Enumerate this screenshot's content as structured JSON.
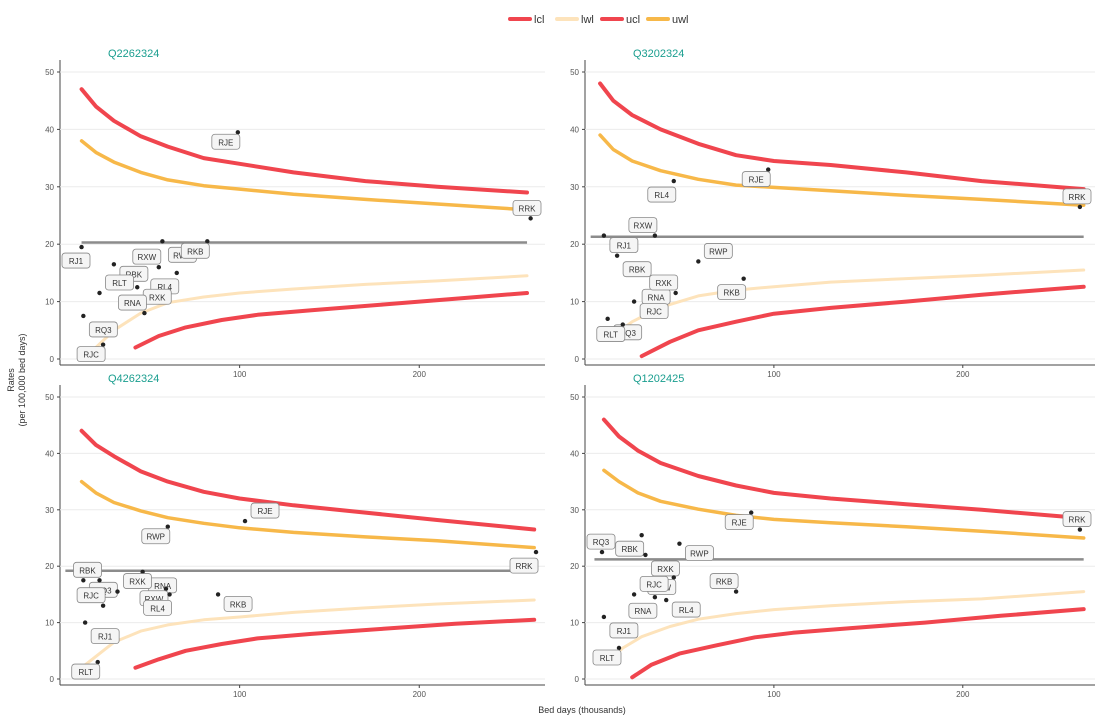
{
  "legend": [
    {
      "label": "lcl",
      "color": "#f0454e"
    },
    {
      "label": "lwl",
      "color": "#fde3bb"
    },
    {
      "label": "ucl",
      "color": "#f0454e"
    },
    {
      "label": "uwl",
      "color": "#f7b849"
    }
  ],
  "axes": {
    "xlabel": "Bed days (thousands)",
    "ylabel_line1": "Rates",
    "ylabel_line2": "(per 100,000 bed days)"
  },
  "colors": {
    "control_limit": "#f0454e",
    "lower_warning": "#fde3bb",
    "upper_warning": "#f7b849",
    "mean_line": "#8c8c8c",
    "panel_title": "#1a9e8f"
  },
  "chart_data": [
    {
      "type": "scatter",
      "title": "Q2262324",
      "xlim": [
        0,
        270
      ],
      "ylim": [
        0,
        50
      ],
      "xticks": [
        100,
        200
      ],
      "yticks": [
        0,
        10,
        20,
        30,
        40,
        50
      ],
      "mean": 20.3,
      "x_range": [
        12,
        260
      ],
      "ucl": [
        [
          12,
          47
        ],
        [
          20,
          44
        ],
        [
          30,
          41.5
        ],
        [
          45,
          38.8
        ],
        [
          60,
          37
        ],
        [
          80,
          35
        ],
        [
          100,
          34
        ],
        [
          130,
          32.5
        ],
        [
          170,
          31
        ],
        [
          210,
          30
        ],
        [
          260,
          29
        ]
      ],
      "uwl": [
        [
          12,
          38
        ],
        [
          20,
          36
        ],
        [
          30,
          34.3
        ],
        [
          45,
          32.5
        ],
        [
          60,
          31.2
        ],
        [
          80,
          30.2
        ],
        [
          100,
          29.6
        ],
        [
          130,
          28.7
        ],
        [
          170,
          27.8
        ],
        [
          210,
          27
        ],
        [
          260,
          26
        ]
      ],
      "lwl": [
        [
          20,
          2
        ],
        [
          30,
          5
        ],
        [
          45,
          8
        ],
        [
          60,
          9.8
        ],
        [
          80,
          10.8
        ],
        [
          100,
          11.5
        ],
        [
          130,
          12.2
        ],
        [
          170,
          13
        ],
        [
          210,
          13.6
        ],
        [
          260,
          14.5
        ]
      ],
      "lcl": [
        [
          42,
          2
        ],
        [
          55,
          4
        ],
        [
          70,
          5.5
        ],
        [
          90,
          6.8
        ],
        [
          110,
          7.7
        ],
        [
          140,
          8.5
        ],
        [
          180,
          9.5
        ],
        [
          220,
          10.5
        ],
        [
          260,
          11.5
        ]
      ],
      "points": [
        {
          "label": "RJE",
          "x": 99,
          "y": 39.5
        },
        {
          "label": "RRK",
          "x": 262,
          "y": 24.5
        },
        {
          "label": "RJ1",
          "x": 12,
          "y": 19.5
        },
        {
          "label": "RBK",
          "x": 30,
          "y": 16.5
        },
        {
          "label": "RXW",
          "x": 55,
          "y": 16
        },
        {
          "label": "RWP",
          "x": 57,
          "y": 20.5
        },
        {
          "label": "RKB",
          "x": 82,
          "y": 20.5
        },
        {
          "label": "RLT",
          "x": 22,
          "y": 11.5
        },
        {
          "label": "RL4",
          "x": 65,
          "y": 15
        },
        {
          "label": "RXK",
          "x": 43,
          "y": 12.5
        },
        {
          "label": "RNA",
          "x": 47,
          "y": 8
        },
        {
          "label": "RQ3",
          "x": 13,
          "y": 7.5
        },
        {
          "label": "RJC",
          "x": 24,
          "y": 2.5
        }
      ]
    },
    {
      "type": "scatter",
      "title": "Q3202324",
      "xlim": [
        0,
        270
      ],
      "ylim": [
        0,
        50
      ],
      "xticks": [
        100,
        200
      ],
      "yticks": [
        0,
        10,
        20,
        30,
        40,
        50
      ],
      "mean": 21.3,
      "x_range": [
        3,
        264
      ],
      "ucl": [
        [
          8,
          48
        ],
        [
          15,
          45
        ],
        [
          25,
          42.5
        ],
        [
          40,
          40
        ],
        [
          60,
          37.5
        ],
        [
          80,
          35.5
        ],
        [
          100,
          34.5
        ],
        [
          130,
          33.8
        ],
        [
          170,
          32.5
        ],
        [
          210,
          31
        ],
        [
          264,
          29.6
        ]
      ],
      "uwl": [
        [
          8,
          39
        ],
        [
          15,
          36.5
        ],
        [
          25,
          34.5
        ],
        [
          40,
          32.8
        ],
        [
          60,
          31.3
        ],
        [
          80,
          30.3
        ],
        [
          100,
          29.9
        ],
        [
          130,
          29.3
        ],
        [
          170,
          28.5
        ],
        [
          210,
          27.8
        ],
        [
          264,
          26.8
        ]
      ],
      "lwl": [
        [
          15,
          4
        ],
        [
          25,
          6.5
        ],
        [
          40,
          9
        ],
        [
          60,
          11
        ],
        [
          80,
          12
        ],
        [
          100,
          12.6
        ],
        [
          130,
          13.4
        ],
        [
          170,
          14
        ],
        [
          210,
          14.6
        ],
        [
          264,
          15.5
        ]
      ],
      "lcl": [
        [
          30,
          0.5
        ],
        [
          45,
          3
        ],
        [
          60,
          5
        ],
        [
          80,
          6.5
        ],
        [
          100,
          7.9
        ],
        [
          130,
          8.9
        ],
        [
          170,
          10
        ],
        [
          210,
          11.2
        ],
        [
          264,
          12.6
        ]
      ],
      "points": [
        {
          "label": "RJE",
          "x": 97,
          "y": 33
        },
        {
          "label": "RRK",
          "x": 262,
          "y": 26.5
        },
        {
          "label": "RL4",
          "x": 47,
          "y": 31
        },
        {
          "label": "RJ1",
          "x": 10,
          "y": 21.5
        },
        {
          "label": "RXW",
          "x": 37,
          "y": 21.5
        },
        {
          "label": "RBK",
          "x": 17,
          "y": 18
        },
        {
          "label": "RNA",
          "x": 44,
          "y": 12.5
        },
        {
          "label": "RWP",
          "x": 60,
          "y": 17
        },
        {
          "label": "RKB",
          "x": 84,
          "y": 14
        },
        {
          "label": "RJC",
          "x": 26,
          "y": 10
        },
        {
          "label": "RXK",
          "x": 48,
          "y": 11.5
        },
        {
          "label": "RQ3",
          "x": 12,
          "y": 7
        },
        {
          "label": "RLT",
          "x": 20,
          "y": 6
        }
      ]
    },
    {
      "type": "scatter",
      "title": "Q4262324",
      "xlim": [
        0,
        270
      ],
      "ylim": [
        0,
        50
      ],
      "xticks": [
        100,
        200
      ],
      "yticks": [
        0,
        10,
        20,
        30,
        40,
        50
      ],
      "mean": 19.2,
      "x_range": [
        3,
        264
      ],
      "ucl": [
        [
          12,
          44
        ],
        [
          20,
          41.5
        ],
        [
          30,
          39.5
        ],
        [
          45,
          36.8
        ],
        [
          60,
          35
        ],
        [
          80,
          33.2
        ],
        [
          100,
          32
        ],
        [
          130,
          30.8
        ],
        [
          170,
          29.5
        ],
        [
          210,
          28.2
        ],
        [
          264,
          26.5
        ]
      ],
      "uwl": [
        [
          12,
          35
        ],
        [
          20,
          33
        ],
        [
          30,
          31.3
        ],
        [
          45,
          29.8
        ],
        [
          60,
          28.6
        ],
        [
          80,
          27.6
        ],
        [
          100,
          26.8
        ],
        [
          130,
          26
        ],
        [
          170,
          25.2
        ],
        [
          210,
          24.5
        ],
        [
          264,
          23.3
        ]
      ],
      "lwl": [
        [
          12,
          2
        ],
        [
          20,
          4
        ],
        [
          30,
          6.5
        ],
        [
          45,
          8.5
        ],
        [
          60,
          9.6
        ],
        [
          80,
          10.5
        ],
        [
          100,
          11
        ],
        [
          130,
          11.8
        ],
        [
          170,
          12.6
        ],
        [
          210,
          13.3
        ],
        [
          264,
          14
        ]
      ],
      "lcl": [
        [
          42,
          2
        ],
        [
          55,
          3.5
        ],
        [
          70,
          5
        ],
        [
          90,
          6.2
        ],
        [
          110,
          7.2
        ],
        [
          140,
          8
        ],
        [
          180,
          8.9
        ],
        [
          220,
          9.8
        ],
        [
          264,
          10.5
        ]
      ],
      "points": [
        {
          "label": "RWP",
          "x": 60,
          "y": 27
        },
        {
          "label": "RJE",
          "x": 103,
          "y": 28
        },
        {
          "label": "RRK",
          "x": 265,
          "y": 22.5
        },
        {
          "label": "RQ3",
          "x": 13,
          "y": 17.5
        },
        {
          "label": "RBK",
          "x": 22,
          "y": 17.5
        },
        {
          "label": "RNA",
          "x": 46,
          "y": 19
        },
        {
          "label": "RXW",
          "x": 59,
          "y": 16
        },
        {
          "label": "RXK",
          "x": 32,
          "y": 15.5
        },
        {
          "label": "RL4",
          "x": 61,
          "y": 15
        },
        {
          "label": "RKB",
          "x": 88,
          "y": 15
        },
        {
          "label": "RJC",
          "x": 24,
          "y": 13
        },
        {
          "label": "RJ1",
          "x": 14,
          "y": 10
        },
        {
          "label": "RLT",
          "x": 21,
          "y": 3
        }
      ]
    },
    {
      "type": "scatter",
      "title": "Q1202425",
      "xlim": [
        0,
        270
      ],
      "ylim": [
        0,
        50
      ],
      "xticks": [
        100,
        200
      ],
      "yticks": [
        0,
        10,
        20,
        30,
        40,
        50
      ],
      "mean": 21.2,
      "x_range": [
        5,
        264
      ],
      "ucl": [
        [
          10,
          46
        ],
        [
          18,
          43
        ],
        [
          28,
          40.5
        ],
        [
          40,
          38.3
        ],
        [
          60,
          36
        ],
        [
          80,
          34.3
        ],
        [
          100,
          33
        ],
        [
          130,
          32
        ],
        [
          170,
          31
        ],
        [
          210,
          30
        ],
        [
          264,
          28.5
        ]
      ],
      "uwl": [
        [
          10,
          37
        ],
        [
          18,
          35
        ],
        [
          28,
          33
        ],
        [
          40,
          31.5
        ],
        [
          60,
          30.1
        ],
        [
          80,
          29
        ],
        [
          100,
          28.3
        ],
        [
          130,
          27.7
        ],
        [
          170,
          27
        ],
        [
          210,
          26.2
        ],
        [
          264,
          25
        ]
      ],
      "lwl": [
        [
          12,
          3
        ],
        [
          20,
          5.5
        ],
        [
          30,
          7.5
        ],
        [
          45,
          9.3
        ],
        [
          60,
          10.6
        ],
        [
          80,
          11.6
        ],
        [
          100,
          12.3
        ],
        [
          130,
          13
        ],
        [
          170,
          13.7
        ],
        [
          210,
          14.2
        ],
        [
          264,
          15.5
        ]
      ],
      "lcl": [
        [
          25,
          0.3
        ],
        [
          35,
          2.5
        ],
        [
          50,
          4.5
        ],
        [
          70,
          6
        ],
        [
          90,
          7.4
        ],
        [
          110,
          8.2
        ],
        [
          140,
          9
        ],
        [
          180,
          10
        ],
        [
          220,
          11.2
        ],
        [
          264,
          12.4
        ]
      ],
      "points": [
        {
          "label": "RJE",
          "x": 88,
          "y": 29.5
        },
        {
          "label": "RRK",
          "x": 262,
          "y": 26.5
        },
        {
          "label": "RBK",
          "x": 30,
          "y": 25.5
        },
        {
          "label": "RWP",
          "x": 50,
          "y": 24
        },
        {
          "label": "RQ3",
          "x": 9,
          "y": 22.5
        },
        {
          "label": "RXK",
          "x": 32,
          "y": 22
        },
        {
          "label": "RXW",
          "x": 47,
          "y": 18
        },
        {
          "label": "RJC",
          "x": 26,
          "y": 15
        },
        {
          "label": "RNA",
          "x": 37,
          "y": 14.5
        },
        {
          "label": "RL4",
          "x": 43,
          "y": 14
        },
        {
          "label": "RKB",
          "x": 80,
          "y": 15.5
        },
        {
          "label": "RJ1",
          "x": 10,
          "y": 11
        },
        {
          "label": "RLT",
          "x": 18,
          "y": 5.5
        }
      ]
    }
  ]
}
